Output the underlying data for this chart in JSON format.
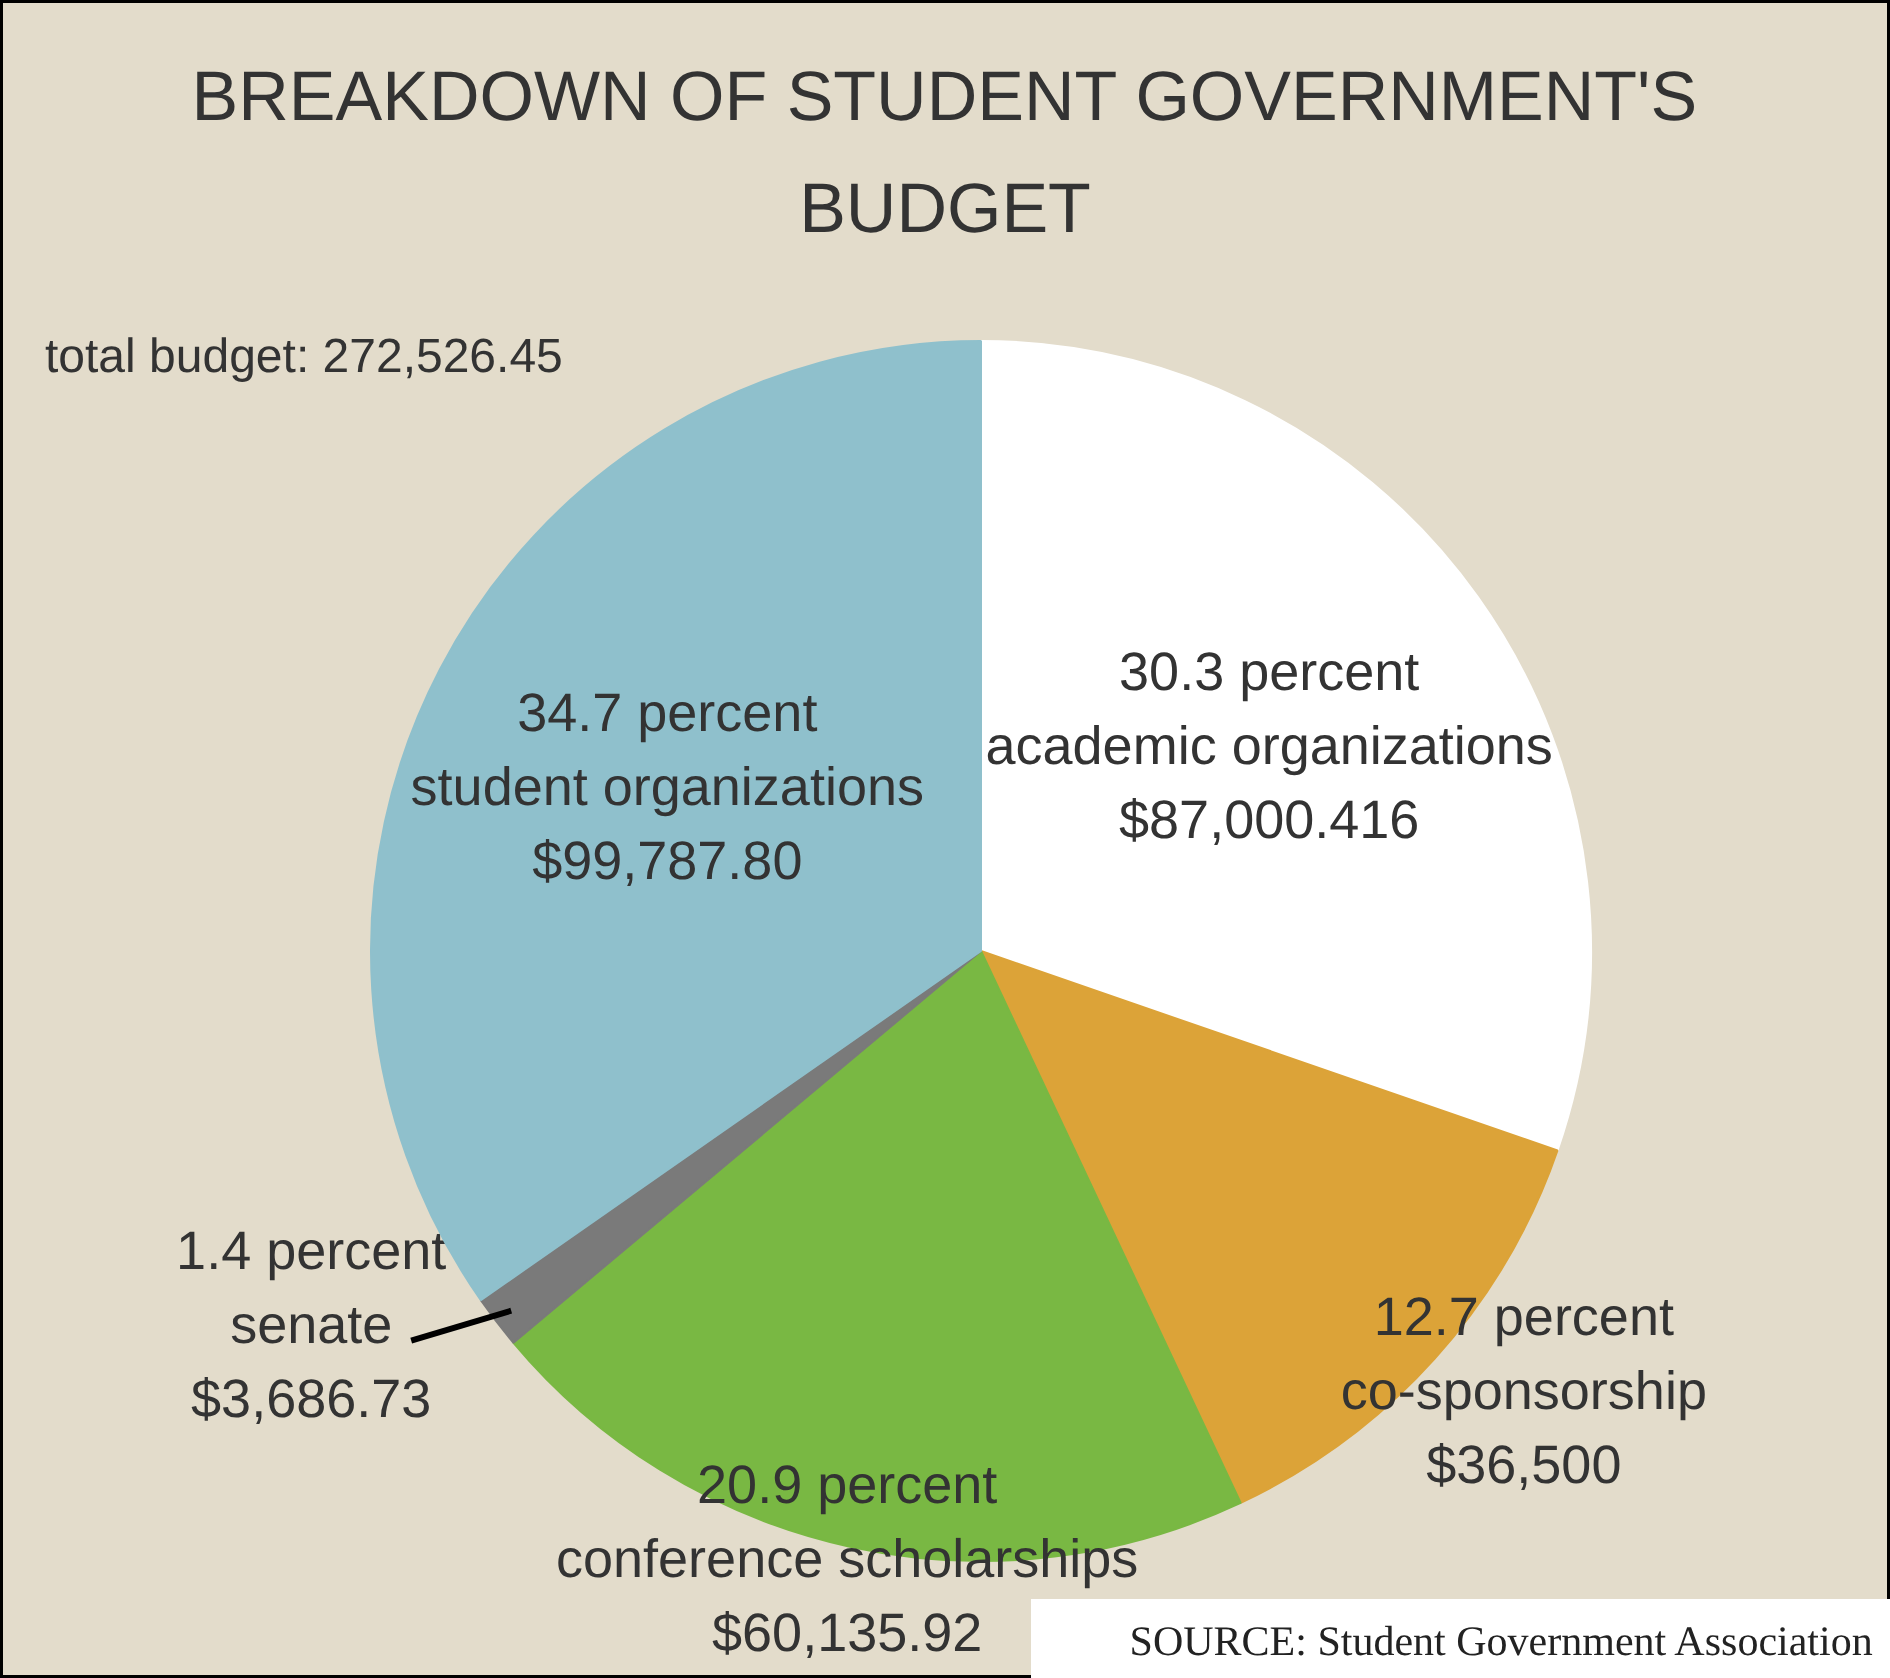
{
  "chart_data": {
    "type": "pie",
    "title": "BREAKDOWN OF STUDENT GOVERNMENT'S BUDGET",
    "categories": [
      "academic organizations",
      "co-sponsorship",
      "conference scholarships",
      "senate",
      "student organizations"
    ],
    "values": [
      30.3,
      12.7,
      20.9,
      1.4,
      34.7
    ],
    "colors": [
      "#ffffff",
      "#dca338",
      "#79b843",
      "#7a7a7a",
      "#8fc0cc"
    ],
    "value_labels": [
      "30.3 percent",
      "12.7 percent",
      "20.9 percent",
      "1.4 percent",
      "34.7 percent"
    ],
    "annotations": [
      {
        "text": "$87,000.416",
        "x": "academic organizations"
      },
      {
        "text": "$36,500",
        "x": "co-sponsorship"
      },
      {
        "text": "$60,135.92",
        "x": "conference scholarships"
      },
      {
        "text": "$3,686.73",
        "x": "senate"
      },
      {
        "text": "$99,787.80",
        "x": "student organizations"
      },
      "total budget: 272,526.45",
      "SOURCE: Student Government Association"
    ]
  }
}
